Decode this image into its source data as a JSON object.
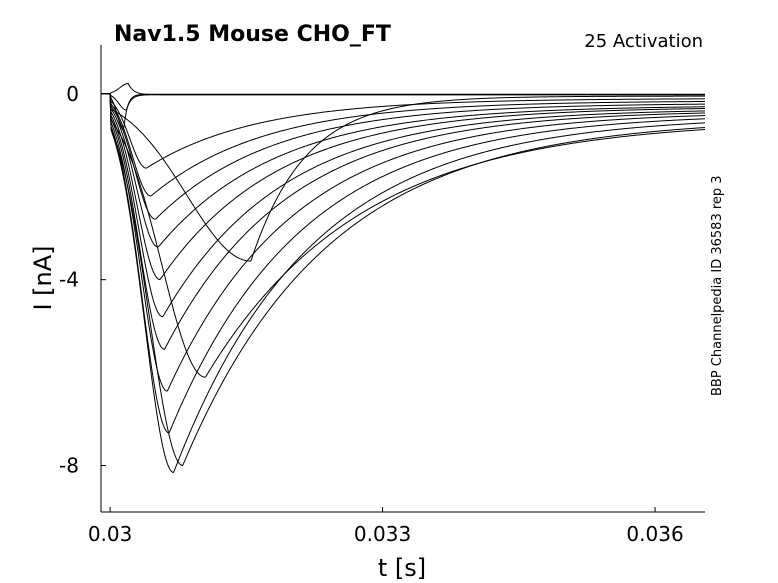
{
  "chart_data": {
    "type": "line",
    "title": "Nav1.5  Mouse  CHO_FT",
    "subtitle": "25  Activation",
    "side_label": "BBP Channelpedia ID 36583 rep 3",
    "xlabel": "t [s]",
    "ylabel": "I [nA]",
    "xlim": [
      0.0299,
      0.03655
    ],
    "ylim": [
      -9.0,
      1.05
    ],
    "x_ticks": [
      0.03,
      0.033,
      0.036
    ],
    "x_tick_labels": [
      "0.03",
      "0.033",
      "0.036"
    ],
    "y_ticks": [
      0,
      -4,
      -8
    ],
    "y_tick_labels": [
      "0",
      "-4",
      "-8"
    ],
    "grid": false,
    "legend": "none",
    "trace_shape": {
      "x_start": 0.0299,
      "x_end": 0.03655,
      "onset": 0.03,
      "note_values": "each series: time of peak (s), peak current (nA), decay time constant (s), residual current at end (nA)"
    },
    "series": [
      {
        "peak_t": 0.03015,
        "peak_i": -0.78,
        "tau": 4e-05,
        "tail": -0.01
      },
      {
        "peak_t": 0.03018,
        "peak_i": -0.35,
        "tau": 5e-05,
        "tail": -0.02
      },
      {
        "peak_t": 0.0302,
        "peak_i": 0.22,
        "tau": 6e-05,
        "tail": -0.02
      },
      {
        "peak_t": 0.03155,
        "peak_i": -3.6,
        "tau": 0.0006,
        "tail": -0.05
      },
      {
        "peak_t": 0.0304,
        "peak_i": -1.6,
        "tau": 0.0012,
        "tail": -0.1
      },
      {
        "peak_t": 0.03045,
        "peak_i": -2.2,
        "tau": 0.00125,
        "tail": -0.15
      },
      {
        "peak_t": 0.0305,
        "peak_i": -2.7,
        "tau": 0.00128,
        "tail": -0.2
      },
      {
        "peak_t": 0.03053,
        "peak_i": -3.3,
        "tau": 0.0013,
        "tail": -0.25
      },
      {
        "peak_t": 0.03055,
        "peak_i": -4.0,
        "tau": 0.0013,
        "tail": -0.28
      },
      {
        "peak_t": 0.03058,
        "peak_i": -4.8,
        "tau": 0.00132,
        "tail": -0.32
      },
      {
        "peak_t": 0.0306,
        "peak_i": -5.5,
        "tau": 0.00135,
        "tail": -0.35
      },
      {
        "peak_t": 0.03063,
        "peak_i": -6.4,
        "tau": 0.0014,
        "tail": -0.38
      },
      {
        "peak_t": 0.03065,
        "peak_i": -7.3,
        "tau": 0.00145,
        "tail": -0.42
      },
      {
        "peak_t": 0.0307,
        "peak_i": -8.15,
        "tau": 0.0015,
        "tail": -0.47
      },
      {
        "peak_t": 0.0308,
        "peak_i": -8.0,
        "tau": 0.0016,
        "tail": -0.52
      },
      {
        "peak_t": 0.03105,
        "peak_i": -6.1,
        "tau": 0.0017,
        "tail": -0.55
      }
    ]
  }
}
